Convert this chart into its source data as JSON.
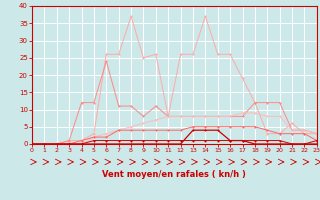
{
  "x": [
    0,
    1,
    2,
    3,
    4,
    5,
    6,
    7,
    8,
    9,
    10,
    11,
    12,
    13,
    14,
    15,
    16,
    17,
    18,
    19,
    20,
    21,
    22,
    23
  ],
  "line1": [
    0,
    0,
    0,
    1,
    1,
    3,
    26,
    26,
    37,
    25,
    26,
    8,
    26,
    26,
    37,
    26,
    26,
    19,
    12,
    3,
    3,
    6,
    3,
    3
  ],
  "line2": [
    0,
    0,
    0,
    1,
    12,
    12,
    24,
    11,
    11,
    8,
    11,
    8,
    8,
    8,
    8,
    8,
    8,
    8,
    12,
    12,
    12,
    4,
    4,
    3
  ],
  "line3": [
    0,
    0,
    0,
    0,
    0,
    2,
    3,
    4,
    5,
    6,
    7,
    8,
    8,
    8,
    8,
    8,
    8,
    9,
    9,
    8,
    8,
    4,
    4,
    3
  ],
  "line4": [
    0,
    0,
    0,
    0,
    1,
    2,
    2,
    4,
    4,
    4,
    4,
    4,
    4,
    5,
    5,
    5,
    5,
    5,
    5,
    4,
    3,
    3,
    3,
    1
  ],
  "line5": [
    0,
    0,
    0,
    0,
    0,
    0,
    0,
    0,
    0,
    0,
    0,
    0,
    0,
    4,
    4,
    4,
    1,
    1,
    0,
    0,
    0,
    0,
    0,
    0
  ],
  "line6": [
    0,
    0,
    0,
    0,
    0,
    1,
    1,
    1,
    1,
    1,
    1,
    1,
    1,
    1,
    1,
    1,
    1,
    1,
    1,
    1,
    1,
    0,
    0,
    1
  ],
  "background_color": "#cce8e8",
  "grid_color": "#ffffff",
  "line1_color": "#ffaaaa",
  "line2_color": "#ff8888",
  "line3_color": "#ffbbbb",
  "line4_color": "#ff6666",
  "line5_color": "#cc0000",
  "line6_color": "#cc0000",
  "xlabel": "Vent moyen/en rafales ( kn/h )",
  "xlabel_color": "#cc0000",
  "tick_color": "#cc0000",
  "ylim": [
    0,
    40
  ],
  "xlim": [
    0,
    23
  ],
  "yticks": [
    0,
    5,
    10,
    15,
    20,
    25,
    30,
    35,
    40
  ]
}
